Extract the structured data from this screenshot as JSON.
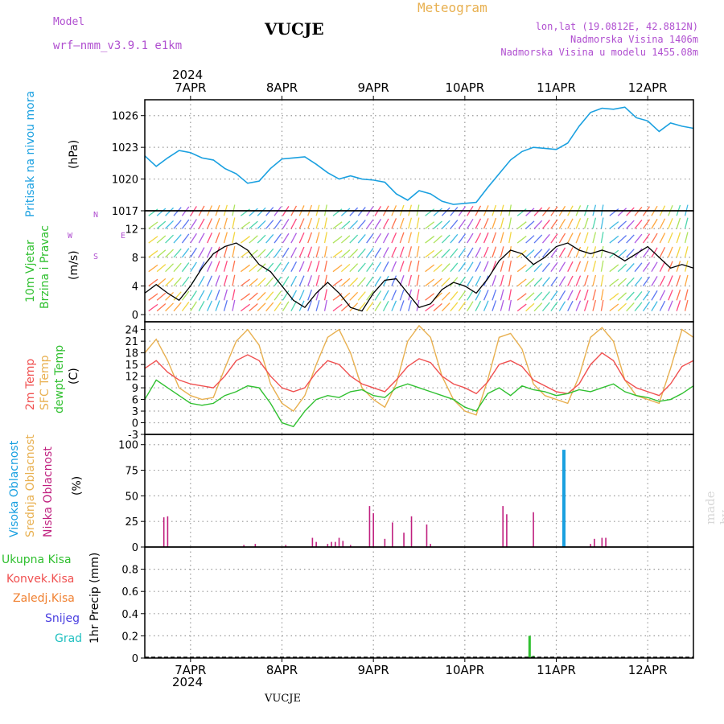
{
  "header": {
    "model_label": "Model",
    "model_name": "wrf—nmm_v3.9.1  e1km",
    "station": "VUCJE",
    "chart_type_label": "Meteogram",
    "lonlat": "lon,lat (19.0812E, 42.8812N)",
    "elevation": "Nadmorska Visina 1406m",
    "model_elevation": "Nadmorska Visina u modelu 1455.08m"
  },
  "footer_station": "VUCJE",
  "watermark": "made by Angel",
  "top_year": "2024",
  "bottom_year": "2024",
  "colors": {
    "pressure": "#1aa0e0",
    "temp2m": "#f05050",
    "sfc_temp": "#e8b050",
    "dewpoint": "#30c030",
    "high_cloud": "#1aa0e0",
    "mid_cloud": "#e8b050",
    "low_cloud": "#c0207f",
    "total_precip": "#30c030",
    "conv_precip": "#f05050",
    "frz_precip": "#f08030",
    "snow": "#4a3fe0",
    "graupel": "#20c0c0",
    "wind_speed": "#000000"
  },
  "panel_labels": {
    "pressure": {
      "name": "Pritisak na nivou mora",
      "unit": "(hPa)"
    },
    "wind": {
      "name1": "10m Vjetar",
      "name2": "Brzina i Pravac",
      "unit": "(m/s)",
      "compass_n": "N",
      "compass_s": "S",
      "compass_w": "W",
      "compass_e": "E"
    },
    "temp": {
      "name1": "2m Temp",
      "name2": "SFC Temp",
      "name3": "dewpt Temp",
      "unit": "(C)"
    },
    "cloud": {
      "name1": "Visoka Oblacnost",
      "name2": "Srednja Oblacnost",
      "name3": "Niska Oblacnost",
      "unit": "(%)"
    },
    "precip": {
      "unit": "1hr Precip (mm)"
    }
  },
  "precip_legend": [
    "Ukupna Kisa",
    "Konvek.Kisa",
    "Zaledj.Kisa",
    "Snijeg",
    "Grad"
  ],
  "chart_data": [
    {
      "type": "line",
      "panel": "pressure",
      "x_unit": "hours since 2024-04-06 12:00",
      "x_ticks": [
        "7APR",
        "8APR",
        "9APR",
        "10APR",
        "11APR",
        "12APR"
      ],
      "xlim": [
        0,
        144
      ],
      "ylim": [
        1017,
        1027.5
      ],
      "yticks": [
        1017,
        1020,
        1023,
        1026
      ],
      "grid": true,
      "series": [
        {
          "name": "Pritisak na nivou mora",
          "x": [
            0,
            3,
            6,
            9,
            12,
            15,
            18,
            21,
            24,
            27,
            30,
            33,
            36,
            39,
            42,
            45,
            48,
            51,
            54,
            57,
            60,
            63,
            66,
            69,
            72,
            75,
            78,
            81,
            84,
            87,
            90,
            93,
            96,
            99,
            102,
            105,
            108,
            111,
            114,
            117,
            120,
            123,
            126,
            129,
            132,
            135,
            138,
            141,
            144
          ],
          "values": [
            1022.2,
            1021.2,
            1022.0,
            1022.7,
            1022.5,
            1022.0,
            1021.8,
            1021.0,
            1020.5,
            1019.6,
            1019.8,
            1021.0,
            1021.9,
            1022.0,
            1022.1,
            1021.4,
            1020.6,
            1020.0,
            1020.3,
            1020.0,
            1019.9,
            1019.7,
            1018.6,
            1018.0,
            1018.9,
            1018.6,
            1017.9,
            1017.6,
            1017.7,
            1017.8,
            1019.2,
            1020.5,
            1021.8,
            1022.6,
            1023.0,
            1022.9,
            1022.8,
            1023.4,
            1025.0,
            1026.3,
            1026.7,
            1026.6,
            1026.8,
            1025.8,
            1025.5,
            1024.5,
            1025.3,
            1025.0,
            1024.8
          ]
        }
      ]
    },
    {
      "type": "line",
      "panel": "wind",
      "x_unit": "hours since 2024-04-06 12:00",
      "xlim": [
        0,
        144
      ],
      "ylim": [
        -1,
        14.5
      ],
      "yticks": [
        0,
        4,
        8,
        12
      ],
      "grid": true,
      "series": [
        {
          "name": "10m Vjetar",
          "x": [
            0,
            3,
            6,
            9,
            12,
            15,
            18,
            21,
            24,
            27,
            30,
            33,
            36,
            39,
            42,
            45,
            48,
            51,
            54,
            57,
            60,
            63,
            66,
            69,
            72,
            75,
            78,
            81,
            84,
            87,
            90,
            93,
            96,
            99,
            102,
            105,
            108,
            111,
            114,
            117,
            120,
            123,
            126,
            129,
            132,
            135,
            138,
            141,
            144
          ],
          "values": [
            3.0,
            4.2,
            3.0,
            2.0,
            4.0,
            6.5,
            8.5,
            9.5,
            10.0,
            9.0,
            7.0,
            6.0,
            4.0,
            2.0,
            1.0,
            3.0,
            4.5,
            3.0,
            1.0,
            0.5,
            3.0,
            4.8,
            5.0,
            3.0,
            1.0,
            1.5,
            3.5,
            4.5,
            4.0,
            3.0,
            5.0,
            7.5,
            9.0,
            8.5,
            7.0,
            8.0,
            9.5,
            10.0,
            9.0,
            8.5,
            9.0,
            8.5,
            7.5,
            8.5,
            9.5,
            8.0,
            6.5,
            7.0,
            6.5
          ]
        }
      ]
    },
    {
      "type": "line",
      "panel": "temperature",
      "x_unit": "hours since 2024-04-06 12:00",
      "xlim": [
        0,
        144
      ],
      "ylim": [
        -3,
        26
      ],
      "yticks": [
        -3,
        0,
        3,
        6,
        9,
        12,
        15,
        18,
        21,
        24
      ],
      "grid": true,
      "series": [
        {
          "name": "2m Temp",
          "x": [
            0,
            3,
            6,
            9,
            12,
            15,
            18,
            21,
            24,
            27,
            30,
            33,
            36,
            39,
            42,
            45,
            48,
            51,
            54,
            57,
            60,
            63,
            66,
            69,
            72,
            75,
            78,
            81,
            84,
            87,
            90,
            93,
            96,
            99,
            102,
            105,
            108,
            111,
            114,
            117,
            120,
            123,
            126,
            129,
            132,
            135,
            138,
            141,
            144
          ],
          "values": [
            14.0,
            16.0,
            13.0,
            11.0,
            10.0,
            9.5,
            9.0,
            12.0,
            16.0,
            17.5,
            16.0,
            12.0,
            9.0,
            8.0,
            9.0,
            13.0,
            16.0,
            15.0,
            12.0,
            10.0,
            9.0,
            8.0,
            11.0,
            14.5,
            16.5,
            15.5,
            12.0,
            10.0,
            9.0,
            7.5,
            10.5,
            15.0,
            16.0,
            14.5,
            11.0,
            9.5,
            8.0,
            7.5,
            10.0,
            15.0,
            18.0,
            16.0,
            11.0,
            9.0,
            8.0,
            7.0,
            10.0,
            14.5,
            16.0
          ]
        },
        {
          "name": "SFC Temp",
          "x": [
            0,
            3,
            6,
            9,
            12,
            15,
            18,
            21,
            24,
            27,
            30,
            33,
            36,
            39,
            42,
            45,
            48,
            51,
            54,
            57,
            60,
            63,
            66,
            69,
            72,
            75,
            78,
            81,
            84,
            87,
            90,
            93,
            96,
            99,
            102,
            105,
            108,
            111,
            114,
            117,
            120,
            123,
            126,
            129,
            132,
            135,
            138,
            141,
            144
          ],
          "values": [
            18.0,
            21.5,
            16.0,
            9.0,
            7.0,
            6.0,
            6.5,
            14.0,
            21.0,
            24.0,
            20.0,
            10.0,
            5.0,
            3.0,
            7.0,
            15.0,
            22.0,
            24.0,
            18.0,
            9.0,
            6.0,
            4.0,
            10.0,
            21.0,
            25.0,
            22.0,
            12.0,
            6.0,
            3.0,
            2.0,
            11.0,
            22.0,
            23.0,
            19.0,
            10.0,
            7.0,
            6.0,
            5.0,
            12.0,
            22.0,
            24.5,
            21.0,
            11.0,
            7.0,
            6.0,
            5.0,
            14.0,
            24.0,
            22.0
          ]
        },
        {
          "name": "dewpt Temp",
          "x": [
            0,
            3,
            6,
            9,
            12,
            15,
            18,
            21,
            24,
            27,
            30,
            33,
            36,
            39,
            42,
            45,
            48,
            51,
            54,
            57,
            60,
            63,
            66,
            69,
            72,
            75,
            78,
            81,
            84,
            87,
            90,
            93,
            96,
            99,
            102,
            105,
            108,
            111,
            114,
            117,
            120,
            123,
            126,
            129,
            132,
            135,
            138,
            141,
            144
          ],
          "values": [
            6.0,
            11.0,
            9.0,
            7.0,
            5.0,
            4.5,
            5.0,
            7.0,
            8.0,
            9.5,
            9.0,
            5.0,
            0.0,
            -1.0,
            3.0,
            6.0,
            7.0,
            6.5,
            8.0,
            8.5,
            7.0,
            6.5,
            9.0,
            10.0,
            9.0,
            8.0,
            7.0,
            6.0,
            4.0,
            3.0,
            7.5,
            9.0,
            7.0,
            9.5,
            8.5,
            8.0,
            7.0,
            7.5,
            8.5,
            8.0,
            9.0,
            10.0,
            8.0,
            7.0,
            6.5,
            5.5,
            6.0,
            7.5,
            9.5
          ]
        }
      ]
    },
    {
      "type": "bar",
      "panel": "cloud",
      "x_unit": "hours since 2024-04-06 12:00",
      "xlim": [
        0,
        144
      ],
      "ylim": [
        0,
        110
      ],
      "yticks": [
        0,
        25,
        50,
        75,
        100
      ],
      "grid": true,
      "series": [
        {
          "name": "Visoka Oblacnost",
          "x": [
            110
          ],
          "values": [
            95
          ]
        },
        {
          "name": "Srednja Oblacnost",
          "x": [],
          "values": []
        },
        {
          "name": "Niska Oblacnost",
          "x": [
            5,
            6,
            26,
            29,
            37,
            44,
            45,
            48,
            49,
            50,
            51,
            52,
            54,
            59,
            60,
            63,
            65,
            68,
            70,
            74,
            75,
            94,
            95,
            102,
            117,
            118,
            120,
            121
          ],
          "values": [
            29,
            30,
            2,
            3,
            2,
            9,
            5,
            3,
            5,
            5,
            9,
            6,
            2,
            40,
            33,
            8,
            24,
            14,
            30,
            22,
            3,
            40,
            32,
            34,
            3,
            8,
            9,
            9
          ]
        }
      ]
    },
    {
      "type": "bar",
      "panel": "precip",
      "x_unit": "hours since 2024-04-06 12:00",
      "xlim": [
        0,
        144
      ],
      "ylim": [
        0,
        1.0
      ],
      "yticks": [
        0,
        0.2,
        0.4,
        0.6,
        0.8
      ],
      "grid": true,
      "series": [
        {
          "name": "Ukupna Kisa",
          "x": [
            101,
            102
          ],
          "values": [
            0.2,
            0.02
          ]
        },
        {
          "name": "Konvek.Kisa",
          "x": [],
          "values": []
        },
        {
          "name": "Zaledj.Kisa",
          "x": [],
          "values": []
        },
        {
          "name": "Snijeg",
          "x": [],
          "values": []
        },
        {
          "name": "Grad",
          "x": [],
          "values": []
        }
      ]
    }
  ]
}
